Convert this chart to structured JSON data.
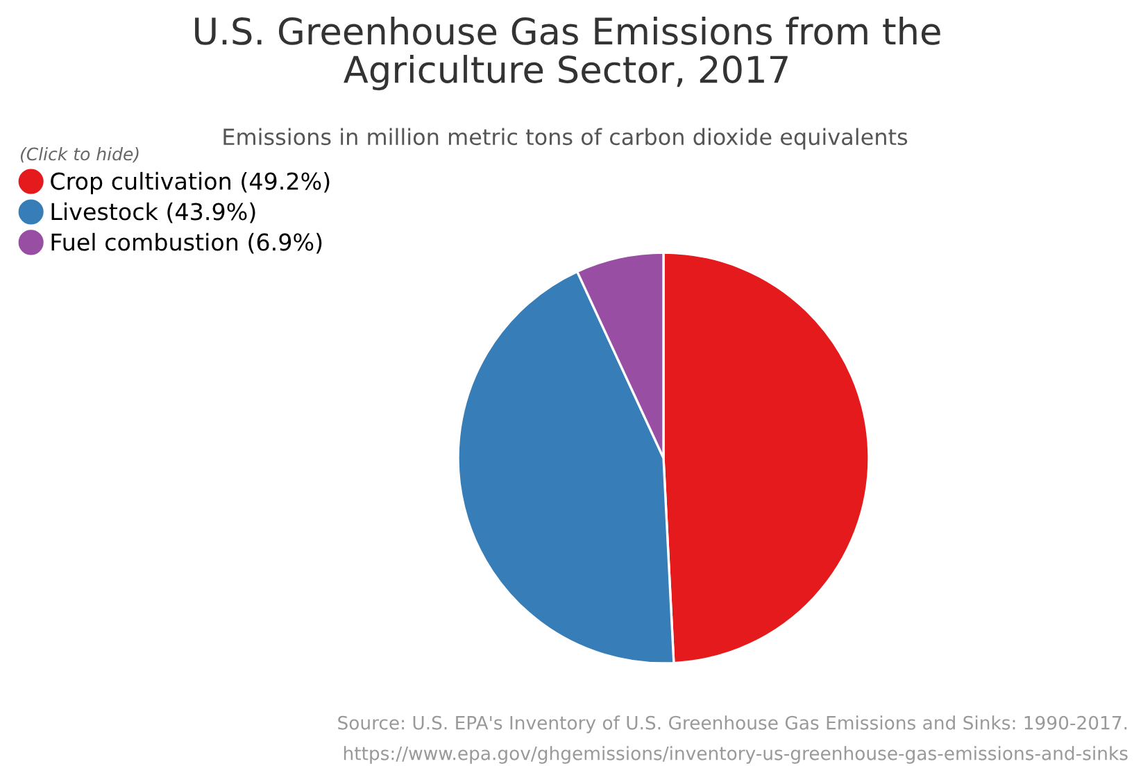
{
  "chart_data": {
    "type": "pie",
    "title": "U.S. Greenhouse Gas Emissions from the\nAgriculture Sector, 2017",
    "subtitle": "Emissions in million metric tons of carbon dioxide equivalents",
    "legend_title": "(Click to hide)",
    "legend": "top left",
    "categories": [
      "Crop cultivation (49.2%)",
      "Livestock (43.9%)",
      "Fuel combustion (6.9%)"
    ],
    "values": [
      49.2,
      43.9,
      6.9
    ],
    "colors": [
      "#e41a1c",
      "#377eb8",
      "#984ea3"
    ],
    "annotations": [
      "Source: U.S. EPA's Inventory of U.S. Greenhouse Gas Emissions and Sinks: 1990-2017.",
      "https://www.epa.gov/ghgemissions/inventory-us-greenhouse-gas-emissions-and-sinks"
    ]
  }
}
